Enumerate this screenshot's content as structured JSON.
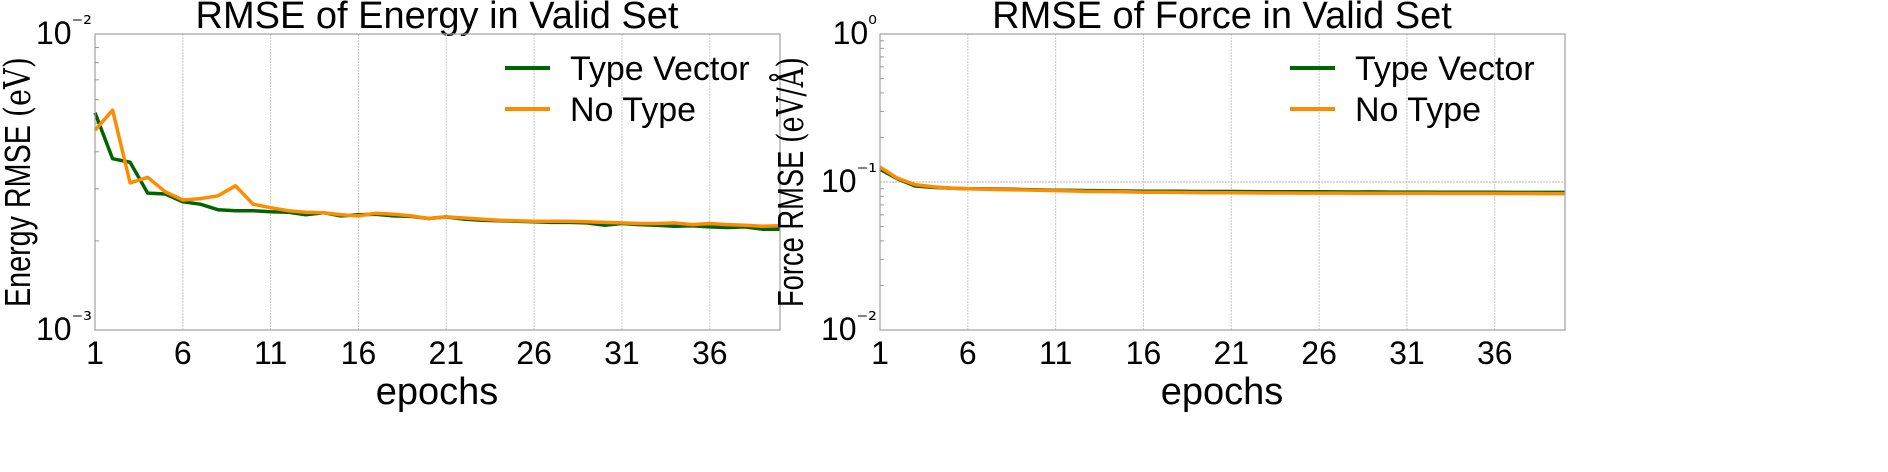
{
  "chart_data": [
    {
      "type": "line",
      "title": "RMSE of Energy in Valid Set",
      "xlabel": "epochs",
      "ylabel": "Energy RMSE",
      "ylabel_unit": "(eV)",
      "yscale": "log",
      "xlim": [
        1,
        40
      ],
      "ylim": [
        0.001,
        0.01
      ],
      "xticks": [
        1,
        6,
        11,
        16,
        21,
        26,
        31,
        36
      ],
      "xtick_labels": [
        "1",
        "6",
        "11",
        "16",
        "21",
        "26",
        "31",
        "36"
      ],
      "yticks": [
        0.001,
        0.01
      ],
      "ytick_labels": [
        "10⁻³",
        "10⁻²"
      ],
      "grid": true,
      "legend_position": "top-right",
      "x": [
        1,
        2,
        3,
        4,
        5,
        6,
        7,
        8,
        9,
        10,
        11,
        12,
        13,
        14,
        15,
        16,
        17,
        18,
        19,
        20,
        21,
        22,
        23,
        24,
        25,
        26,
        27,
        28,
        29,
        30,
        31,
        32,
        33,
        34,
        35,
        36,
        37,
        38,
        39,
        40
      ],
      "series": [
        {
          "name": "Type Vector",
          "color": "#006400",
          "values": [
            0.00542,
            0.00379,
            0.00369,
            0.0029,
            0.00288,
            0.00271,
            0.00266,
            0.00255,
            0.00253,
            0.00253,
            0.00251,
            0.0025,
            0.00245,
            0.00249,
            0.00243,
            0.00245,
            0.00246,
            0.00243,
            0.00242,
            0.00238,
            0.00241,
            0.00237,
            0.00235,
            0.00234,
            0.00233,
            0.00232,
            0.00231,
            0.00231,
            0.0023,
            0.00226,
            0.00229,
            0.00227,
            0.00226,
            0.00224,
            0.00225,
            0.00223,
            0.00222,
            0.00223,
            0.00219,
            0.00219
          ]
        },
        {
          "name": "No Type",
          "color": "#ff8c00",
          "values": [
            0.00473,
            0.00553,
            0.00314,
            0.00328,
            0.00293,
            0.00275,
            0.00278,
            0.00284,
            0.00307,
            0.00266,
            0.00259,
            0.00253,
            0.0025,
            0.00249,
            0.00245,
            0.00243,
            0.00248,
            0.00246,
            0.00243,
            0.00238,
            0.00241,
            0.00239,
            0.00237,
            0.00235,
            0.00234,
            0.00233,
            0.00233,
            0.00233,
            0.00232,
            0.00231,
            0.0023,
            0.00229,
            0.00229,
            0.0023,
            0.00227,
            0.00229,
            0.00227,
            0.00226,
            0.00224,
            0.00225
          ]
        }
      ]
    },
    {
      "type": "line",
      "title": "RMSE of Force in Valid Set",
      "xlabel": "epochs",
      "ylabel": "Force RMSE",
      "ylabel_unit": "(eV/Å)",
      "yscale": "log",
      "xlim": [
        1,
        40
      ],
      "ylim": [
        0.01,
        1
      ],
      "xticks": [
        1,
        6,
        11,
        16,
        21,
        26,
        31,
        36
      ],
      "xtick_labels": [
        "1",
        "6",
        "11",
        "16",
        "21",
        "26",
        "31",
        "36"
      ],
      "yticks": [
        0.01,
        0.1,
        1
      ],
      "ytick_labels": [
        "10⁻²",
        "10⁻¹",
        "10⁰"
      ],
      "grid": true,
      "legend_position": "top-right",
      "x": [
        1,
        2,
        3,
        4,
        5,
        6,
        7,
        8,
        9,
        10,
        11,
        12,
        13,
        14,
        15,
        16,
        17,
        18,
        19,
        20,
        21,
        22,
        23,
        24,
        25,
        26,
        27,
        28,
        29,
        30,
        31,
        32,
        33,
        34,
        35,
        36,
        37,
        38,
        39,
        40
      ],
      "series": [
        {
          "name": "Type Vector",
          "color": "#006400",
          "values": [
            0.122,
            0.105,
            0.094,
            0.092,
            0.091,
            0.09,
            0.0898,
            0.0895,
            0.089,
            0.0885,
            0.088,
            0.0878,
            0.0875,
            0.0873,
            0.087,
            0.0867,
            0.0866,
            0.0865,
            0.0863,
            0.0862,
            0.0862,
            0.0861,
            0.086,
            0.086,
            0.086,
            0.0858,
            0.0857,
            0.0856,
            0.0857,
            0.0855,
            0.0855,
            0.0854,
            0.0853,
            0.0853,
            0.0852,
            0.0852,
            0.0851,
            0.0851,
            0.085,
            0.085
          ]
        },
        {
          "name": "No Type",
          "color": "#ff8c00",
          "values": [
            0.126,
            0.106,
            0.096,
            0.093,
            0.091,
            0.09,
            0.0893,
            0.0888,
            0.0884,
            0.088,
            0.0875,
            0.087,
            0.0862,
            0.0862,
            0.086,
            0.0852,
            0.0852,
            0.085,
            0.0848,
            0.0846,
            0.0845,
            0.0844,
            0.0843,
            0.0843,
            0.0842,
            0.0842,
            0.0841,
            0.084,
            0.084,
            0.084,
            0.0839,
            0.0839,
            0.0838,
            0.0838,
            0.0837,
            0.0837,
            0.0836,
            0.0836,
            0.0835,
            0.0835
          ]
        }
      ]
    }
  ]
}
